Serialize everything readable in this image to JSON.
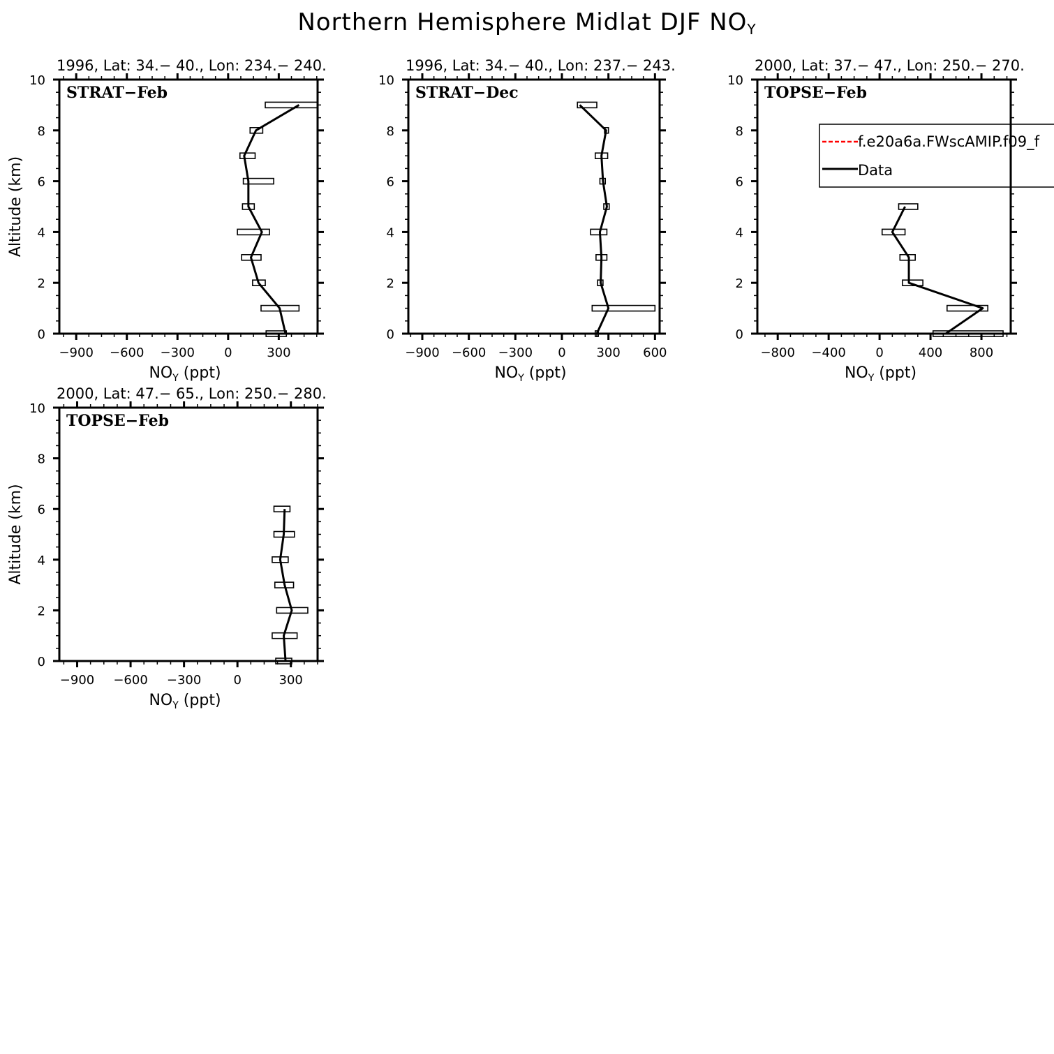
{
  "title": {
    "main": "Northern Hemisphere Midlat DJF NO",
    "sub": "Y"
  },
  "legend": {
    "entries": [
      {
        "label": "f.e20a6a.FWscAMIP.f09_f",
        "color": "#ff0000",
        "style": "dashed"
      },
      {
        "label": "Data",
        "color": "#000000",
        "style": "solid"
      }
    ]
  },
  "chart_data": [
    {
      "type": "line",
      "title": "1996, Lat: 34.− 40., Lon: 234.− 240.",
      "campaign": "STRAT−Feb",
      "xlabel": "NO",
      "xlabel_sub": "Y",
      "xlabel_unit": "(ppt)",
      "ylabel": "Altitude (km)",
      "xlim": [
        -1000,
        530
      ],
      "ylim": [
        0,
        10
      ],
      "xticks": [
        -900,
        -600,
        -300,
        0,
        300
      ],
      "xtick_labels": [
        "−900",
        "−600",
        "−300",
        "0",
        "300"
      ],
      "yticks": [
        0,
        2,
        4,
        6,
        8,
        10
      ],
      "series": [
        {
          "name": "Data",
          "altitude": [
            0,
            1,
            2,
            3,
            4,
            5,
            6,
            7,
            8,
            9
          ],
          "values": [
            340,
            305,
            180,
            135,
            200,
            120,
            120,
            95,
            165,
            420
          ]
        }
      ],
      "error_boxes": [
        [
          225,
          345
        ],
        [
          195,
          420
        ],
        [
          145,
          220
        ],
        [
          80,
          195
        ],
        [
          55,
          245
        ],
        [
          85,
          155
        ],
        [
          90,
          270
        ],
        [
          70,
          160
        ],
        [
          130,
          205
        ],
        [
          220,
          530
        ]
      ]
    },
    {
      "type": "line",
      "title": "1996, Lat: 34.− 40., Lon: 237.− 243.",
      "campaign": "STRAT−Dec",
      "xlabel": "NO",
      "xlabel_sub": "Y",
      "xlabel_unit": "(ppt)",
      "ylabel": "",
      "xlim": [
        -990,
        630
      ],
      "ylim": [
        0,
        10
      ],
      "xticks": [
        -900,
        -600,
        -300,
        0,
        300,
        600
      ],
      "xtick_labels": [
        "−900",
        "−600",
        "−300",
        "0",
        "300",
        "600"
      ],
      "yticks": [
        0,
        2,
        4,
        6,
        8,
        10
      ],
      "series": [
        {
          "name": "Data",
          "altitude": [
            0,
            1,
            2,
            3,
            4,
            5,
            6,
            7,
            8,
            9
          ],
          "values": [
            225,
            300,
            250,
            255,
            245,
            290,
            265,
            255,
            285,
            115
          ]
        }
      ],
      "error_boxes": [
        [
          215,
          235
        ],
        [
          195,
          600
        ],
        [
          230,
          265
        ],
        [
          220,
          290
        ],
        [
          185,
          290
        ],
        [
          270,
          305
        ],
        [
          245,
          280
        ],
        [
          215,
          295
        ],
        [
          275,
          300
        ],
        [
          100,
          225
        ]
      ]
    },
    {
      "type": "line",
      "title": "2000, Lat: 37.− 47., Lon: 250.− 270.",
      "campaign": "TOPSE−Feb",
      "xlabel": "NO",
      "xlabel_sub": "Y",
      "xlabel_unit": "(ppt)",
      "ylabel": "",
      "xlim": [
        -960,
        1030
      ],
      "ylim": [
        0,
        10
      ],
      "xticks": [
        -800,
        -400,
        0,
        400,
        800
      ],
      "xtick_labels": [
        "−800",
        "−400",
        "0",
        "400",
        "800"
      ],
      "yticks": [
        0,
        2,
        4,
        6,
        8,
        10
      ],
      "series": [
        {
          "name": "Data",
          "altitude": [
            0,
            1,
            2,
            3,
            4,
            5
          ],
          "values": [
            520,
            810,
            230,
            230,
            100,
            200
          ]
        }
      ],
      "error_boxes": [
        [
          420,
          970
        ],
        [
          530,
          850
        ],
        [
          180,
          340
        ],
        [
          160,
          280
        ],
        [
          20,
          200
        ],
        [
          150,
          300
        ]
      ]
    },
    {
      "type": "line",
      "title": "2000, Lat: 47.− 65., Lon: 250.− 280.",
      "campaign": "TOPSE−Feb",
      "xlabel": "NO",
      "xlabel_sub": "Y",
      "xlabel_unit": "(ppt)",
      "ylabel": "Altitude (km)",
      "xlim": [
        -1000,
        450
      ],
      "ylim": [
        0,
        10
      ],
      "xticks": [
        -900,
        -600,
        -300,
        0,
        300
      ],
      "xtick_labels": [
        "−900",
        "−600",
        "−300",
        "0",
        "300"
      ],
      "yticks": [
        0,
        2,
        4,
        6,
        8,
        10
      ],
      "series": [
        {
          "name": "Data",
          "altitude": [
            0,
            1,
            2,
            3,
            4,
            5,
            6
          ],
          "values": [
            270,
            260,
            305,
            265,
            240,
            260,
            265
          ]
        }
      ],
      "error_boxes": [
        [
          215,
          305
        ],
        [
          195,
          335
        ],
        [
          220,
          395
        ],
        [
          210,
          315
        ],
        [
          195,
          285
        ],
        [
          205,
          320
        ],
        [
          205,
          295
        ]
      ]
    }
  ]
}
